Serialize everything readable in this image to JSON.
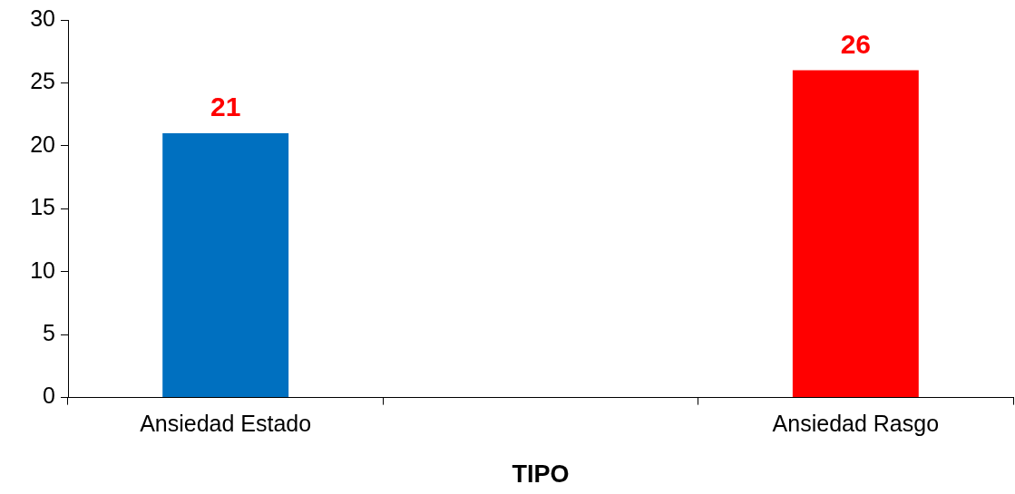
{
  "chart_data": {
    "type": "bar",
    "xlabel": "TIPO",
    "categories": [
      "Ansiedad Estado",
      null,
      "Ansiedad Rasgo"
    ],
    "values": [
      21,
      null,
      26
    ],
    "colors": [
      "#0070c0",
      "#000000",
      "#ff0000"
    ],
    "ylim": [
      0,
      30
    ],
    "yticks": [
      0,
      5,
      10,
      15,
      20,
      25,
      30
    ],
    "grid": false,
    "legend": false,
    "data_labels": true
  }
}
